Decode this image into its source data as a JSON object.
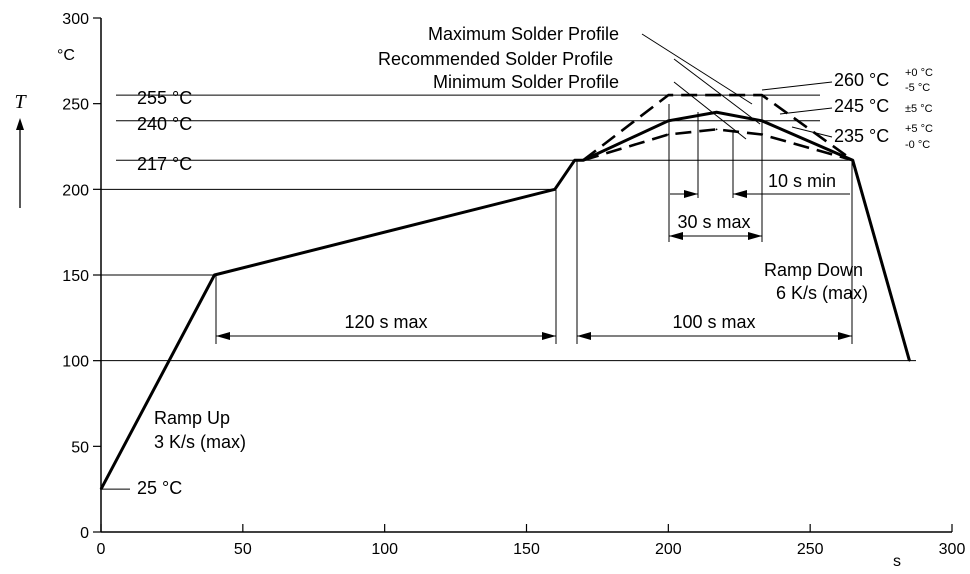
{
  "chart_data": {
    "type": "line",
    "xlabel": "s",
    "ylabel": "T",
    "y_unit": "°C",
    "xlim": [
      0,
      300
    ],
    "ylim": [
      0,
      300
    ],
    "x_ticks": [
      0,
      50,
      100,
      150,
      200,
      250,
      300
    ],
    "y_ticks": [
      0,
      50,
      100,
      150,
      200,
      250,
      300
    ],
    "grid": false,
    "series": [
      {
        "name": "Recommended Solder Profile",
        "style": "solid",
        "x": [
          0,
          40,
          160,
          167,
          170,
          200,
          217,
          233,
          265,
          285
        ],
        "y": [
          25,
          150,
          200,
          217,
          217,
          240,
          245,
          240,
          217,
          100
        ]
      },
      {
        "name": "Maximum Solder Profile",
        "style": "dashed",
        "x": [
          170,
          200,
          233,
          265
        ],
        "y": [
          217,
          255,
          255,
          217
        ]
      },
      {
        "name": "Minimum Solder Profile",
        "style": "dashed",
        "x": [
          170,
          200,
          217,
          233,
          265
        ],
        "y": [
          217,
          232,
          235,
          232,
          217
        ]
      }
    ],
    "reference_lines": [
      {
        "label": "255 °C",
        "y": 255
      },
      {
        "label": "240 °C",
        "y": 240
      },
      {
        "label": "217 °C",
        "y": 217
      },
      {
        "label": "25 °C",
        "y": 25
      }
    ],
    "peak_labels": [
      {
        "label": "260 °C",
        "tol_plus": "+0 °C",
        "tol_minus": "-5 °C",
        "y": 260
      },
      {
        "label": "245 °C",
        "tol": "±5 °C",
        "y": 245
      },
      {
        "label": "235 °C",
        "tol_plus": "+5 °C",
        "tol_minus": "-0 °C",
        "y": 235
      }
    ],
    "annotations": {
      "ramp_up": [
        "Ramp Up",
        "3 K/s (max)"
      ],
      "ramp_down": [
        "Ramp Down",
        "6 K/s (max)"
      ],
      "dur_120": "120 s max",
      "dur_100": "100 s max",
      "dur_30": "30 s max",
      "dur_10": "10 s min"
    }
  }
}
